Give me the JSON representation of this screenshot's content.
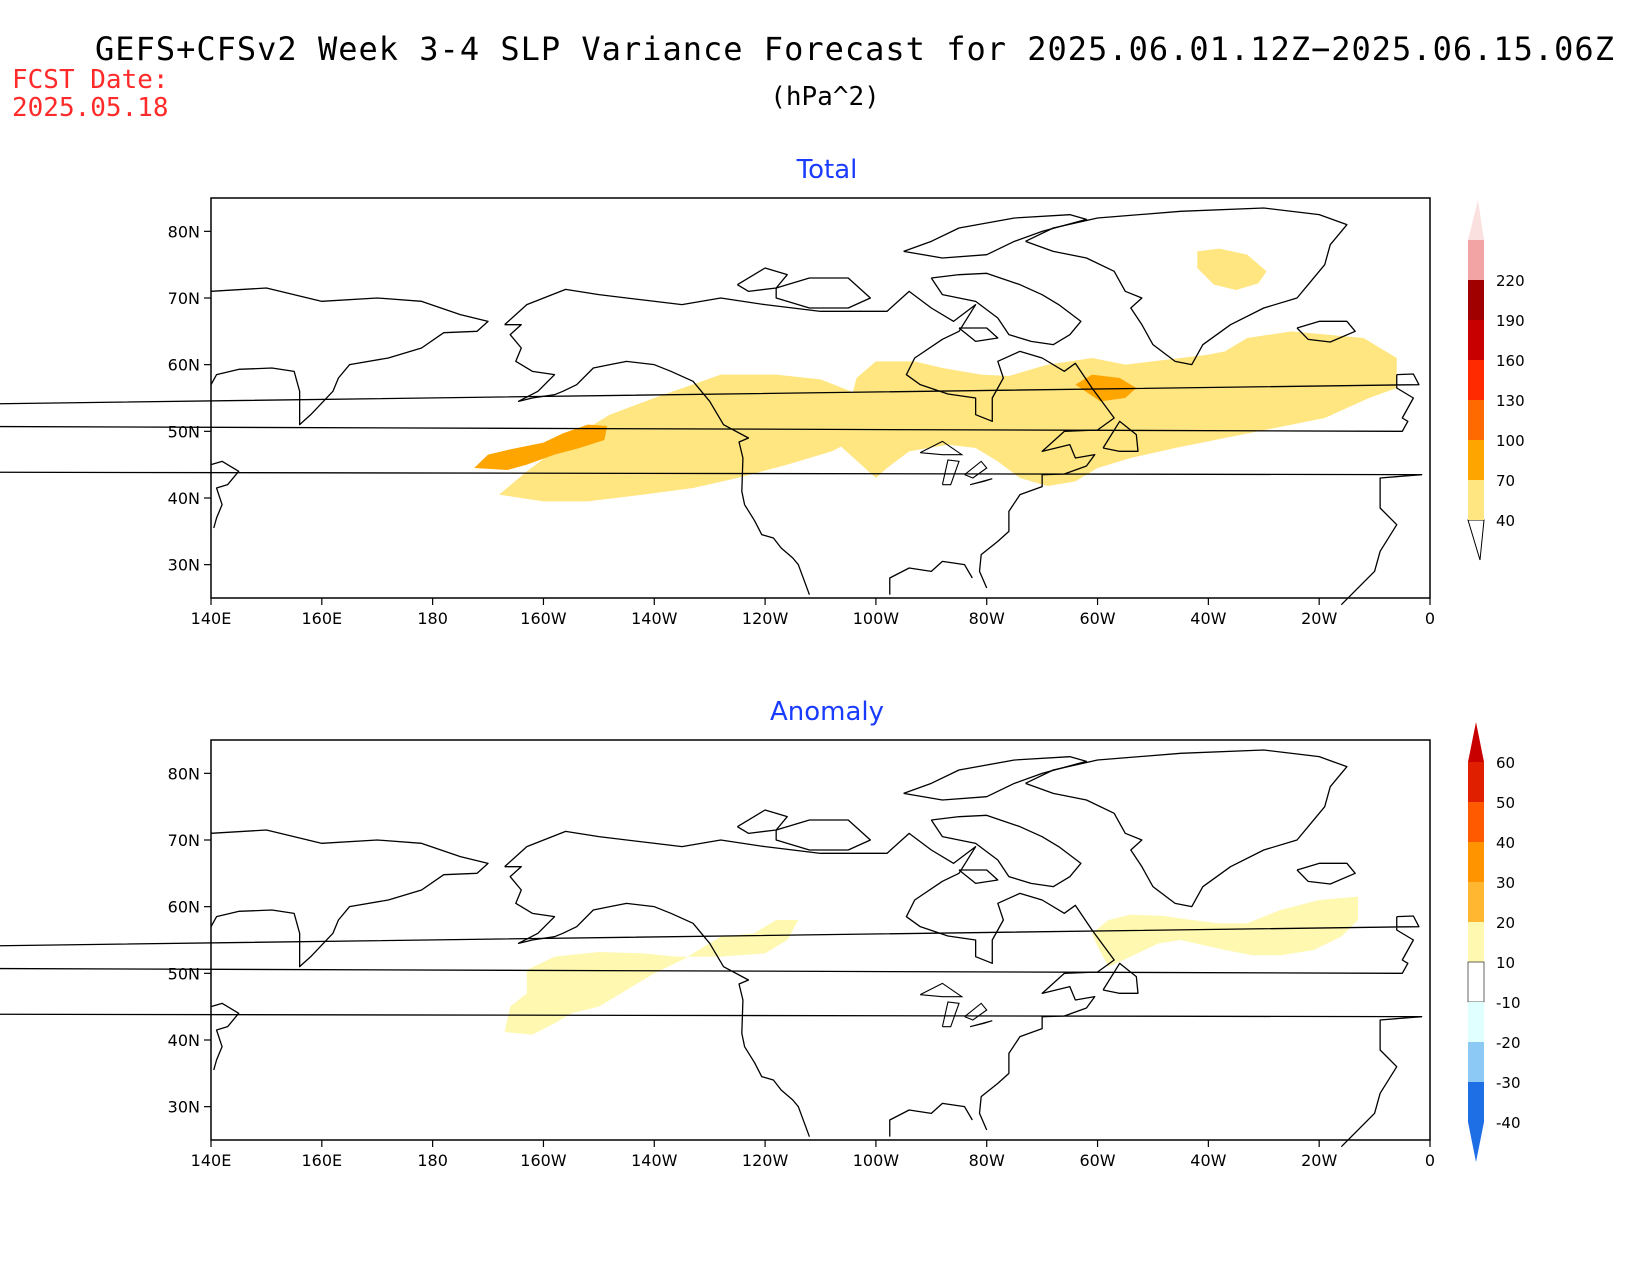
{
  "title": "GEFS+CFSv2 Week 3-4 SLP Variance Forecast for 2025.06.01.12Z−2025.06.15.06Z",
  "units": "(hPa^2)",
  "fcst_date_label": "FCST Date:",
  "fcst_date_value": "2025.05.18",
  "panels": [
    {
      "title": "Total",
      "x_ticks": [
        "140E",
        "160E",
        "180",
        "160W",
        "140W",
        "120W",
        "100W",
        "80W",
        "60W",
        "40W",
        "20W",
        "0"
      ],
      "y_ticks": [
        "80N",
        "70N",
        "60N",
        "50N",
        "40N",
        "30N"
      ],
      "colorbar_labels": [
        "40",
        "70",
        "100",
        "130",
        "160",
        "190",
        "220"
      ],
      "colorbar_colors": [
        "#ffe680",
        "#ffa500",
        "#ff6a00",
        "#ff2a00",
        "#c80000",
        "#a00000",
        "#f2a3a3",
        "#fbe0e0"
      ]
    },
    {
      "title": "Anomaly",
      "x_ticks": [
        "140E",
        "160E",
        "180",
        "160W",
        "140W",
        "120W",
        "100W",
        "80W",
        "60W",
        "40W",
        "20W",
        "0"
      ],
      "y_ticks": [
        "80N",
        "70N",
        "60N",
        "50N",
        "40N",
        "30N"
      ],
      "colorbar_labels": [
        "-40",
        "-30",
        "-20",
        "-10",
        "10",
        "20",
        "30",
        "40",
        "50",
        "60"
      ],
      "colorbar_colors": [
        "#1e6fe6",
        "#1e8cf0",
        "#8ccaf5",
        "#e0ffff",
        "#ffffff",
        "#fff8b0",
        "#ffe066",
        "#ffb732",
        "#ffa500",
        "#ff6a00",
        "#ff2a00",
        "#c80000"
      ]
    }
  ],
  "colors": {
    "total_low": "#ffe680",
    "total_mid": "#ffa500",
    "total_high": "#ff8c00",
    "anom_low": "#fff8b0",
    "title_text": "#000000",
    "panel_title": "#1a3cff",
    "fcst_date": "#ff2a2a",
    "coast": "#000000"
  }
}
